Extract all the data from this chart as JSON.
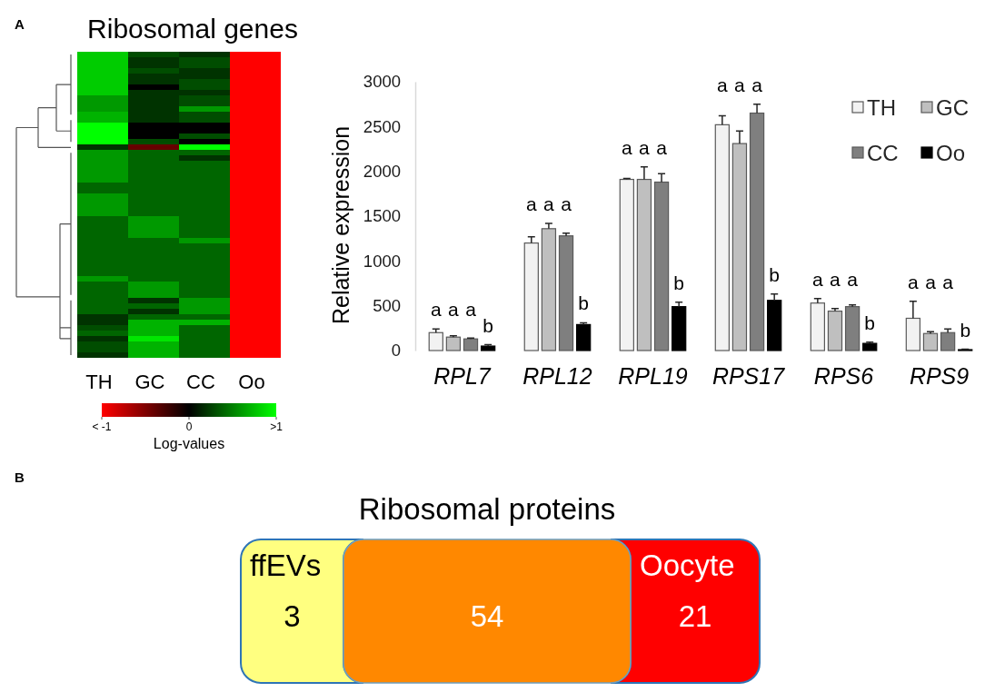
{
  "chart_data": [
    {
      "type": "heatmap",
      "title": "Ribosomal genes",
      "annotations": [
        "A"
      ],
      "categories": [
        "TH",
        "GC",
        "CC",
        "Oo"
      ],
      "y_categories": [
        null,
        null,
        null,
        null,
        null,
        null,
        null,
        null,
        null,
        null,
        null,
        null,
        null,
        null,
        null,
        null,
        null,
        null,
        null,
        null,
        null,
        null,
        null,
        null,
        null,
        null,
        null,
        null,
        null,
        null,
        null,
        null,
        null,
        null,
        null,
        null,
        null,
        null,
        null,
        null,
        null,
        null,
        null,
        null,
        null,
        null,
        null,
        null,
        null,
        null,
        null,
        null,
        null,
        null,
        null,
        null
      ],
      "cells": [
        [
          0.8,
          0.3,
          0.2,
          -1
        ],
        [
          0.8,
          0.2,
          0.3,
          -1
        ],
        [
          0.8,
          0.2,
          0.3,
          -1
        ],
        [
          0.8,
          0.3,
          0.2,
          -1
        ],
        [
          0.8,
          0.2,
          0.2,
          -1
        ],
        [
          0.8,
          0.2,
          0.3,
          -1
        ],
        [
          0.8,
          0,
          0.3,
          -1
        ],
        [
          0.8,
          0.2,
          0.2,
          -1
        ],
        [
          0.6,
          0.2,
          0.3,
          -1
        ],
        [
          0.6,
          0.2,
          0.3,
          -1
        ],
        [
          0.6,
          0.2,
          0.6,
          -1
        ],
        [
          0.7,
          0.2,
          0.3,
          -1
        ],
        [
          0.7,
          0.2,
          0.3,
          -1
        ],
        [
          1,
          0,
          0,
          -1
        ],
        [
          1,
          0,
          0,
          -1
        ],
        [
          1,
          0,
          0.3,
          -1
        ],
        [
          1,
          0.3,
          0,
          -1
        ],
        [
          0.2,
          -0.4,
          1,
          -1
        ],
        [
          0.6,
          0.4,
          0.4,
          -1
        ],
        [
          0.6,
          0.4,
          0.2,
          -1
        ],
        [
          0.6,
          0.4,
          0.4,
          -1
        ],
        [
          0.6,
          0.4,
          0.4,
          -1
        ],
        [
          0.6,
          0.4,
          0.4,
          -1
        ],
        [
          0.6,
          0.4,
          0.4,
          -1
        ],
        [
          0.4,
          0.4,
          0.4,
          -1
        ],
        [
          0.4,
          0.4,
          0.4,
          -1
        ],
        [
          0.6,
          0.4,
          0.4,
          -1
        ],
        [
          0.6,
          0.4,
          0.4,
          -1
        ],
        [
          0.6,
          0.4,
          0.4,
          -1
        ],
        [
          0.6,
          0.4,
          0.4,
          -1
        ],
        [
          0.4,
          0.6,
          0.4,
          -1
        ],
        [
          0.4,
          0.6,
          0.4,
          -1
        ],
        [
          0.4,
          0.6,
          0.4,
          -1
        ],
        [
          0.4,
          0.6,
          0.4,
          -1
        ],
        [
          0.4,
          0.4,
          0.6,
          -1
        ],
        [
          0.4,
          0.4,
          0.4,
          -1
        ],
        [
          0.4,
          0.4,
          0.4,
          -1
        ],
        [
          0.4,
          0.4,
          0.4,
          -1
        ],
        [
          0.4,
          0.4,
          0.4,
          -1
        ],
        [
          0.4,
          0.4,
          0.4,
          -1
        ],
        [
          0.4,
          0.4,
          0.4,
          -1
        ],
        [
          0.6,
          0.4,
          0.4,
          -1
        ],
        [
          0.4,
          0.6,
          0.4,
          -1
        ],
        [
          0.4,
          0.6,
          0.4,
          -1
        ],
        [
          0.4,
          0.6,
          0.4,
          -1
        ],
        [
          0.4,
          0.2,
          0.6,
          -1
        ],
        [
          0.4,
          0.4,
          0.6,
          -1
        ],
        [
          0.4,
          0.2,
          0.6,
          -1
        ],
        [
          0.2,
          0.4,
          0.4,
          -1
        ],
        [
          0.2,
          0.7,
          0.7,
          -1
        ],
        [
          0.3,
          0.7,
          0.4,
          -1
        ],
        [
          0.4,
          0.7,
          0.4,
          -1
        ],
        [
          0.2,
          0.9,
          0.4,
          -1
        ],
        [
          0.3,
          0.7,
          0.4,
          -1
        ],
        [
          0.3,
          0.7,
          0.4,
          -1
        ],
        [
          0.2,
          0.7,
          0.4,
          -1
        ]
      ],
      "clim": [
        -1,
        1
      ],
      "cticks": [
        {
          "value": -1,
          "label": "< -1"
        },
        {
          "value": 0,
          "label": "0"
        },
        {
          "value": 1,
          "label": ">1"
        }
      ],
      "clabel": "Log-values"
    },
    {
      "type": "bar",
      "ylabel": "Relative expression",
      "categories": [
        "RPL7",
        "RPL12",
        "RPL19",
        "RPS17",
        "RPS6",
        "RPS9"
      ],
      "series": [
        {
          "name": "TH",
          "color": "#f2f2f2",
          "values": [
            200,
            1200,
            1910,
            2520,
            530,
            360
          ],
          "errors": [
            [
              200,
              240
            ],
            [
              1200,
              1270
            ],
            [
              1910,
              1920
            ],
            [
              2520,
              2620
            ],
            [
              530,
              580
            ],
            [
              360,
              550
            ]
          ],
          "value_labels": [
            "a",
            "a",
            "a",
            "a",
            "a",
            "a"
          ]
        },
        {
          "name": "GC",
          "color": "#bfbfbf",
          "values": [
            150,
            1360,
            1910,
            2310,
            440,
            190
          ],
          "errors": [
            [
              150,
              165
            ],
            [
              1360,
              1420
            ],
            [
              1910,
              2050
            ],
            [
              2310,
              2450
            ],
            [
              440,
              470
            ],
            [
              190,
              210
            ]
          ],
          "value_labels": [
            "a",
            "a",
            "a",
            "a",
            "a",
            "a"
          ]
        },
        {
          "name": "CC",
          "color": "#7f7f7f",
          "values": [
            130,
            1280,
            1880,
            2650,
            490,
            200
          ],
          "errors": [
            [
              130,
              140
            ],
            [
              1280,
              1310
            ],
            [
              1880,
              1975
            ],
            [
              2650,
              2750
            ],
            [
              490,
              510
            ],
            [
              200,
              240
            ]
          ],
          "value_labels": [
            "a",
            "a",
            "a",
            "a",
            "a",
            "a"
          ]
        },
        {
          "name": "Oo",
          "color": "#000000",
          "values": [
            50,
            290,
            490,
            560,
            80,
            10
          ],
          "errors": [
            [
              50,
              65
            ],
            [
              290,
              310
            ],
            [
              490,
              540
            ],
            [
              560,
              630
            ],
            [
              80,
              95
            ],
            [
              10,
              15
            ]
          ],
          "value_labels": [
            "b",
            "b",
            "b",
            "b",
            "b",
            "b"
          ]
        }
      ],
      "ylim": [
        0,
        3000
      ],
      "yticks": [
        0,
        500,
        1000,
        1500,
        2000,
        2500,
        3000
      ],
      "legend": "top right"
    },
    {
      "type": "other",
      "title": "Ribosomal proteins",
      "annotations": [
        "B"
      ],
      "categories": [
        "ffEVs",
        null,
        "Oocyte"
      ],
      "values": [
        3,
        54,
        21
      ],
      "colors": [
        "#ffff80",
        "#ff8800",
        "#ff0000"
      ],
      "data_labels": true
    }
  ]
}
